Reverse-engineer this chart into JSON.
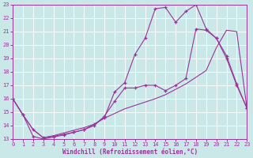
{
  "bg_color": "#cbe8e8",
  "grid_color": "#b0d0d0",
  "line_color": "#993399",
  "xlabel": "Windchill (Refroidissement éolien,°C)",
  "xlim": [
    0,
    23
  ],
  "ylim": [
    13,
    23
  ],
  "xticks": [
    0,
    1,
    2,
    3,
    4,
    5,
    6,
    7,
    8,
    9,
    10,
    11,
    12,
    13,
    14,
    15,
    16,
    17,
    18,
    19,
    20,
    21,
    22,
    23
  ],
  "yticks": [
    13,
    14,
    15,
    16,
    17,
    18,
    19,
    20,
    21,
    22,
    23
  ],
  "series1_x": [
    0,
    1,
    2,
    3,
    4,
    5,
    6,
    7,
    8,
    9,
    10,
    11,
    12,
    13,
    14,
    15,
    16,
    17,
    18,
    19,
    20,
    21,
    22,
    23
  ],
  "series1_y": [
    16.0,
    14.8,
    13.7,
    13.1,
    13.2,
    13.35,
    13.5,
    13.7,
    14.0,
    14.7,
    15.8,
    16.8,
    16.8,
    17.0,
    17.0,
    16.6,
    17.0,
    17.5,
    21.2,
    21.1,
    20.5,
    19.0,
    17.0,
    15.3
  ],
  "series2_x": [
    0,
    1,
    2,
    3,
    4,
    5,
    6,
    7,
    8,
    9,
    10,
    11,
    12,
    13,
    14,
    15,
    16,
    17,
    18,
    19,
    20,
    21,
    22,
    23
  ],
  "series2_y": [
    16.0,
    14.8,
    13.2,
    13.0,
    13.15,
    13.3,
    13.5,
    13.7,
    14.1,
    14.6,
    16.5,
    17.2,
    19.3,
    20.5,
    22.7,
    22.8,
    21.7,
    22.5,
    23.0,
    21.2,
    20.5,
    19.2,
    17.1,
    15.3
  ],
  "series3_x": [
    0,
    1,
    2,
    3,
    4,
    5,
    6,
    7,
    8,
    9,
    10,
    11,
    12,
    13,
    14,
    15,
    16,
    17,
    18,
    19,
    20,
    21,
    22,
    23
  ],
  "series3_y": [
    16.0,
    14.8,
    13.7,
    13.1,
    13.25,
    13.45,
    13.65,
    13.85,
    14.1,
    14.55,
    14.9,
    15.25,
    15.5,
    15.75,
    16.0,
    16.3,
    16.7,
    17.1,
    17.6,
    18.1,
    19.8,
    21.1,
    21.0,
    15.3
  ]
}
